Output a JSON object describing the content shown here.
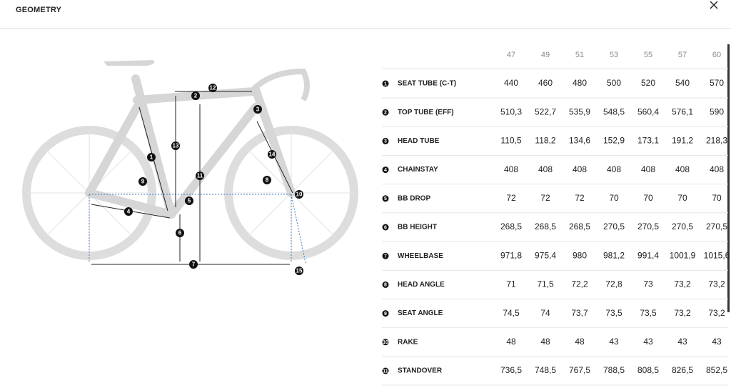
{
  "header": {
    "title": "GEOMETRY"
  },
  "diagram": {
    "labels": [
      "1",
      "2",
      "3",
      "4",
      "5",
      "6",
      "7",
      "8",
      "9",
      "10",
      "11",
      "12",
      "13",
      "14",
      "15"
    ]
  },
  "table": {
    "sizes": [
      "47",
      "49",
      "51",
      "53",
      "55",
      "57",
      "60"
    ],
    "rows": [
      {
        "number": "1",
        "name": "SEAT TUBE (C-T)",
        "values": [
          "440",
          "460",
          "480",
          "500",
          "520",
          "540",
          "570"
        ]
      },
      {
        "number": "2",
        "name": "TOP TUBE (EFF)",
        "values": [
          "510,3",
          "522,7",
          "535,9",
          "548,5",
          "560,4",
          "576,1",
          "590"
        ]
      },
      {
        "number": "3",
        "name": "HEAD TUBE",
        "values": [
          "110,5",
          "118,2",
          "134,6",
          "152,9",
          "173,1",
          "191,2",
          "218,3"
        ]
      },
      {
        "number": "4",
        "name": "CHAINSTAY",
        "values": [
          "408",
          "408",
          "408",
          "408",
          "408",
          "408",
          "408"
        ]
      },
      {
        "number": "5",
        "name": "BB DROP",
        "values": [
          "72",
          "72",
          "72",
          "70",
          "70",
          "70",
          "70"
        ]
      },
      {
        "number": "6",
        "name": "BB HEIGHT",
        "values": [
          "268,5",
          "268,5",
          "268,5",
          "270,5",
          "270,5",
          "270,5",
          "270,5"
        ]
      },
      {
        "number": "7",
        "name": "WHEELBASE",
        "values": [
          "971,8",
          "975,4",
          "980",
          "981,2",
          "991,4",
          "1001,9",
          "1015,6"
        ]
      },
      {
        "number": "8",
        "name": "HEAD ANGLE",
        "values": [
          "71",
          "71,5",
          "72,2",
          "72,8",
          "73",
          "73,2",
          "73,2"
        ]
      },
      {
        "number": "9",
        "name": "SEAT ANGLE",
        "values": [
          "74,5",
          "74",
          "73,7",
          "73,5",
          "73,5",
          "73,2",
          "73,2"
        ]
      },
      {
        "number": "10",
        "name": "RAKE",
        "values": [
          "48",
          "48",
          "48",
          "43",
          "43",
          "43",
          "43"
        ]
      },
      {
        "number": "11",
        "name": "STANDOVER",
        "values": [
          "736,5",
          "748,5",
          "767,5",
          "788,5",
          "808,5",
          "826,5",
          "852,5"
        ]
      }
    ]
  }
}
